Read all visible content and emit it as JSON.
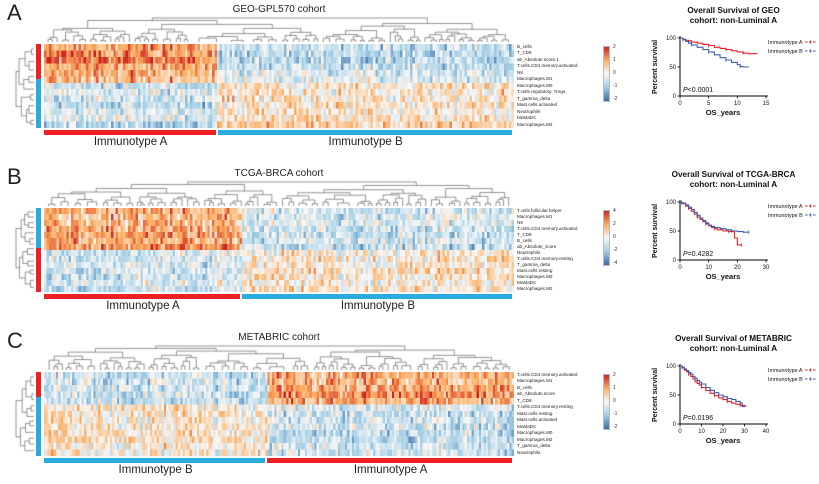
{
  "chart_data": [
    {
      "label": "A",
      "heatmap": {
        "type": "heatmap",
        "title": "GEO-GPL570 cohort",
        "rows": [
          "B_cells",
          "T_CD8",
          "ab_Absolute score.1",
          "T.cells.CD4.memory.activated",
          "NK",
          "Macrophages.M1",
          "Macrophages.M0",
          "T.cells.regulatory..Tregs.",
          "T_gamma_delta",
          "Mast.cells.activated",
          "Neutrophils",
          "MoMaDC",
          "Macrophages.M2"
        ],
        "groups": [
          {
            "name": "Immunotype A",
            "color": "#ed2024",
            "cols": 70,
            "row_means": [
              1.1,
              1.2,
              1.4,
              1.0,
              0.8,
              0.7,
              -0.5,
              -0.4,
              -0.5,
              -0.6,
              -0.4,
              -0.3,
              -0.7
            ]
          },
          {
            "name": "Immunotype B",
            "color": "#29abe2",
            "cols": 120,
            "row_means": [
              -0.6,
              -0.7,
              -0.8,
              -0.6,
              -0.4,
              -0.3,
              0.25,
              0.2,
              0.2,
              0.3,
              0.2,
              0.25,
              0.45
            ]
          }
        ],
        "row_clusters": [
          {
            "color": "#ed2024",
            "fraction": 0.42
          },
          {
            "color": "#29abe2",
            "fraction": 0.58
          }
        ],
        "colorbar_ticks": [
          "2",
          "1",
          "0",
          "-1",
          "-2"
        ],
        "value_range": [
          -2,
          2
        ]
      },
      "survival": {
        "type": "line",
        "title_line1": "Overall Survival of GEO",
        "title_line2": "cohort: non-Luminal A",
        "ylabel": "Percent survival",
        "xlabel": "OS_years",
        "xmax": 15,
        "xticks": [
          0,
          5,
          10,
          15
        ],
        "yticks": [
          0,
          50,
          100
        ],
        "p_label": "P<0.0001",
        "series": [
          {
            "name": "Immunotype A",
            "color": "#ed2024",
            "points": [
              [
                0,
                100
              ],
              [
                0.5,
                98
              ],
              [
                1,
                96
              ],
              [
                1.5,
                95
              ],
              [
                2,
                93
              ],
              [
                3,
                91
              ],
              [
                4,
                89
              ],
              [
                5,
                87
              ],
              [
                6,
                84
              ],
              [
                7,
                82
              ],
              [
                8,
                80
              ],
              [
                9,
                78
              ],
              [
                10,
                76
              ],
              [
                11,
                74
              ],
              [
                12,
                73
              ],
              [
                13.5,
                73
              ]
            ]
          },
          {
            "name": "Immunotype B",
            "color": "#3a5fa8",
            "points": [
              [
                0,
                100
              ],
              [
                0.5,
                97
              ],
              [
                1,
                94
              ],
              [
                1.5,
                91
              ],
              [
                2,
                88
              ],
              [
                3,
                84
              ],
              [
                4,
                80
              ],
              [
                5,
                76
              ],
              [
                6,
                71
              ],
              [
                7,
                66
              ],
              [
                8,
                62
              ],
              [
                9,
                58
              ],
              [
                10,
                54
              ],
              [
                10.5,
                51
              ],
              [
                11,
                50
              ],
              [
                12,
                50
              ]
            ]
          }
        ]
      }
    },
    {
      "label": "B",
      "heatmap": {
        "type": "heatmap",
        "title": "TCGA-BRCA cohort",
        "rows": [
          "T.cells.follicular.helper",
          "Macrophages.M1",
          "NK",
          "T.cells.CD4.memory.activated",
          "T_CD8",
          "B_cells",
          "ab_Absolute_score",
          "Neutrophils",
          "T.cells.CD4.memory.resting",
          "T_gamma_delta",
          "Mast.cells.resting",
          "Macrophages.M0",
          "MoMaDC",
          "Macrophages.M2"
        ],
        "groups": [
          {
            "name": "Immunotype A",
            "color": "#ed2024",
            "cols": 80,
            "row_means": [
              0.9,
              0.8,
              0.7,
              1.0,
              1.1,
              0.9,
              1.2,
              -0.35,
              -0.5,
              -0.4,
              -0.5,
              -0.45,
              -0.3,
              -0.6
            ]
          },
          {
            "name": "Immunotype B",
            "color": "#29abe2",
            "cols": 110,
            "row_means": [
              -0.4,
              -0.35,
              -0.3,
              -0.5,
              -0.5,
              -0.4,
              -0.6,
              0.2,
              0.25,
              0.2,
              0.3,
              0.25,
              0.2,
              0.35
            ]
          }
        ],
        "row_clusters": [
          {
            "color": "#29abe2",
            "fraction": 0.48
          },
          {
            "color": "#ed2024",
            "fraction": 0.52
          }
        ],
        "colorbar_ticks": [
          "4",
          "2",
          "0",
          "-2",
          "-4"
        ],
        "value_range": [
          -2,
          2
        ]
      },
      "survival": {
        "type": "line",
        "title_line1": "Overall Survival of TCGA-BRCA",
        "title_line2": "cohort: non-Luminal A",
        "ylabel": "Percent survival",
        "xlabel": "OS_years",
        "xmax": 30,
        "xticks": [
          0,
          10,
          20,
          30
        ],
        "yticks": [
          0,
          50,
          100
        ],
        "p_label": "P=0.4282",
        "series": [
          {
            "name": "Immunotype A",
            "color": "#ed2024",
            "points": [
              [
                0,
                100
              ],
              [
                0.5,
                99
              ],
              [
                1,
                97
              ],
              [
                2,
                93
              ],
              [
                3,
                89
              ],
              [
                4,
                84
              ],
              [
                5,
                79
              ],
              [
                6,
                74
              ],
              [
                7,
                70
              ],
              [
                8,
                66
              ],
              [
                9,
                62
              ],
              [
                10,
                59
              ],
              [
                11,
                56
              ],
              [
                12,
                54
              ],
              [
                13,
                52
              ],
              [
                15,
                50
              ],
              [
                17,
                49
              ],
              [
                19,
                38
              ],
              [
                20,
                26
              ],
              [
                21.5,
                26
              ]
            ]
          },
          {
            "name": "Immunotype B",
            "color": "#3a5fa8",
            "points": [
              [
                0,
                100
              ],
              [
                0.5,
                99
              ],
              [
                1,
                98
              ],
              [
                2,
                95
              ],
              [
                3,
                91
              ],
              [
                4,
                87
              ],
              [
                5,
                82
              ],
              [
                6,
                77
              ],
              [
                7,
                72
              ],
              [
                8,
                68
              ],
              [
                9,
                64
              ],
              [
                10,
                60
              ],
              [
                11,
                58
              ],
              [
                12,
                56
              ],
              [
                14,
                54
              ],
              [
                16,
                52
              ],
              [
                18,
                50
              ],
              [
                20,
                49
              ],
              [
                22,
                48
              ],
              [
                24,
                48
              ]
            ]
          }
        ]
      }
    },
    {
      "label": "C",
      "heatmap": {
        "type": "heatmap",
        "title": "METABRIC cohort",
        "rows": [
          "T.cells.CD4.memory.activated",
          "Macrophages.M1",
          "B_cells",
          "ab_Absolute.score",
          "T_CD8",
          "T.cells.CD4.memory.resting",
          "Mast.cells.resting",
          "Mast.cells.activated",
          "MoMaDC",
          "Macrophages.M0",
          "Macrophages.M2",
          "T_gamma_delta",
          "Neutrophils"
        ],
        "groups": [
          {
            "name": "Immunotype B",
            "color": "#29abe2",
            "cols": 95,
            "row_means": [
              -0.5,
              -0.4,
              -0.5,
              -0.6,
              -0.5,
              0.2,
              0.25,
              0.2,
              0.25,
              0.3,
              0.35,
              0.2,
              0.25
            ]
          },
          {
            "name": "Immunotype A",
            "color": "#ed2024",
            "cols": 105,
            "row_means": [
              0.9,
              0.8,
              1.0,
              1.2,
              0.9,
              -0.4,
              -0.5,
              -0.45,
              -0.5,
              -0.6,
              -0.7,
              -0.4,
              -0.5
            ]
          }
        ],
        "row_clusters": [
          {
            "color": "#ed2024",
            "fraction": 0.3
          },
          {
            "color": "#29abe2",
            "fraction": 0.7
          }
        ],
        "colorbar_ticks": [
          "2",
          "1",
          "0",
          "-1",
          "-2"
        ],
        "value_range": [
          -2,
          2
        ]
      },
      "survival": {
        "type": "line",
        "title_line1": "Overall Survival of METABRIC",
        "title_line2": "cohort: non-Luminal A",
        "ylabel": "Percent survival",
        "xlabel": "OS_years",
        "xmax": 40,
        "xticks": [
          0,
          10,
          20,
          30,
          40
        ],
        "yticks": [
          0,
          50,
          100
        ],
        "p_label": "P=0.0196",
        "series": [
          {
            "name": "Immunotype A",
            "color": "#ed2024",
            "points": [
              [
                0,
                100
              ],
              [
                1,
                97
              ],
              [
                2,
                93
              ],
              [
                3,
                90
              ],
              [
                4,
                86
              ],
              [
                5,
                82
              ],
              [
                6,
                78
              ],
              [
                7,
                74
              ],
              [
                8,
                70
              ],
              [
                9,
                67
              ],
              [
                10,
                63
              ],
              [
                12,
                58
              ],
              [
                14,
                53
              ],
              [
                16,
                49
              ],
              [
                18,
                45
              ],
              [
                20,
                42
              ],
              [
                22,
                39
              ],
              [
                24,
                36
              ],
              [
                26,
                34
              ],
              [
                28,
                32
              ],
              [
                30,
                31
              ],
              [
                31,
                31
              ]
            ]
          },
          {
            "name": "Immunotype B",
            "color": "#3a5fa8",
            "points": [
              [
                0,
                100
              ],
              [
                1,
                98
              ],
              [
                2,
                95
              ],
              [
                3,
                92
              ],
              [
                4,
                89
              ],
              [
                5,
                86
              ],
              [
                6,
                82
              ],
              [
                7,
                79
              ],
              [
                8,
                75
              ],
              [
                9,
                72
              ],
              [
                10,
                69
              ],
              [
                12,
                63
              ],
              [
                14,
                58
              ],
              [
                16,
                54
              ],
              [
                18,
                50
              ],
              [
                20,
                47
              ],
              [
                22,
                44
              ],
              [
                24,
                42
              ],
              [
                26,
                39
              ],
              [
                28,
                36
              ],
              [
                29,
                30
              ],
              [
                30,
                29
              ]
            ]
          }
        ]
      }
    }
  ]
}
